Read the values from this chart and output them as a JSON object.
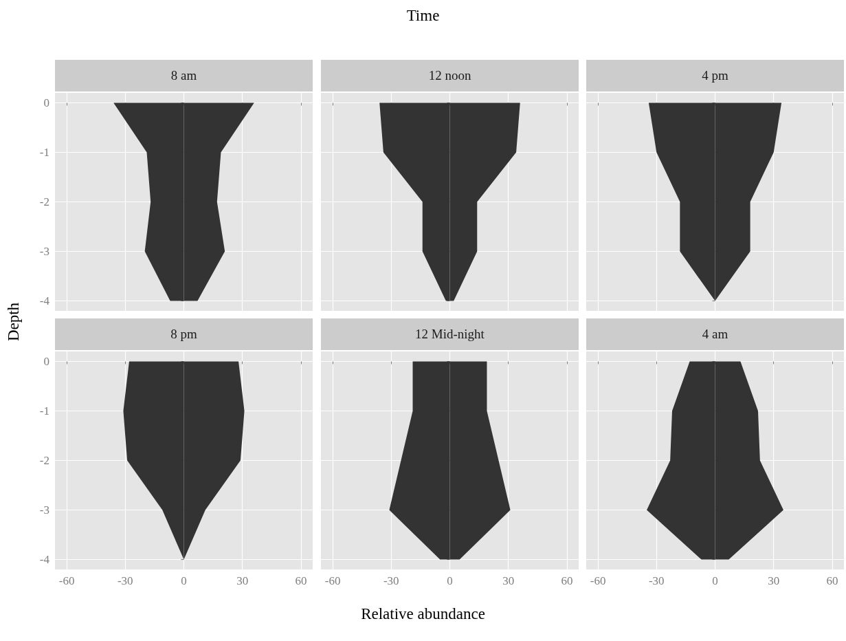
{
  "chart_data": [
    {
      "type": "area",
      "orientation": "horizontal",
      "title": "8 am",
      "ylabel": "Depth",
      "x": [
        0,
        -1,
        -2,
        -3,
        -4
      ],
      "series": [
        {
          "color": "#333333",
          "values": [
            -36,
            -19,
            -17,
            -20,
            -7
          ]
        },
        {
          "color": "#333333",
          "values": [
            36,
            19,
            17,
            21,
            7
          ]
        }
      ],
      "xlim": [
        -66,
        66
      ],
      "ylim": [
        -4.2,
        0.2
      ],
      "xticks": [
        -60,
        -30,
        0,
        30,
        60
      ],
      "yticks": [
        0,
        -1,
        -2,
        -3,
        -4
      ],
      "grid": true,
      "tick_labels": "y"
    },
    {
      "type": "area",
      "orientation": "horizontal",
      "title": "12 noon",
      "annotations": [
        "Time"
      ],
      "x": [
        0,
        -1,
        -2,
        -3,
        -4
      ],
      "series": [
        {
          "color": "#333333",
          "values": [
            -36,
            -34,
            -14,
            -14,
            -2
          ]
        },
        {
          "color": "#333333",
          "values": [
            36,
            34,
            14,
            14,
            2
          ]
        }
      ],
      "xlim": [
        -66,
        66
      ],
      "ylim": [
        -4.2,
        0.2
      ],
      "xticks": [
        -60,
        -30,
        0,
        30,
        60
      ],
      "yticks": [
        0,
        -1,
        -2,
        -3,
        -4
      ],
      "grid": true,
      "tick_labels": false
    },
    {
      "type": "area",
      "orientation": "horizontal",
      "title": "4 pm",
      "x": [
        0,
        -1,
        -2,
        -3,
        -4
      ],
      "series": [
        {
          "color": "#333333",
          "values": [
            -34,
            -30,
            -18,
            -18,
            0
          ]
        },
        {
          "color": "#333333",
          "values": [
            34,
            30,
            18,
            18,
            0
          ]
        }
      ],
      "xlim": [
        -66,
        66
      ],
      "ylim": [
        -4.2,
        0.2
      ],
      "xticks": [
        -60,
        -30,
        0,
        30,
        60
      ],
      "yticks": [
        0,
        -1,
        -2,
        -3,
        -4
      ],
      "grid": true,
      "tick_labels": false
    },
    {
      "type": "area",
      "orientation": "horizontal",
      "title": "8 pm",
      "x": [
        0,
        -1,
        -2,
        -3,
        -4
      ],
      "series": [
        {
          "color": "#333333",
          "values": [
            -28,
            -31,
            -29,
            -11,
            0
          ]
        },
        {
          "color": "#333333",
          "values": [
            28,
            31,
            29,
            11,
            0
          ]
        }
      ],
      "xlim": [
        -66,
        66
      ],
      "ylim": [
        -4.2,
        0.2
      ],
      "xticks": [
        -60,
        -30,
        0,
        30,
        60
      ],
      "yticks": [
        0,
        -1,
        -2,
        -3,
        -4
      ],
      "grid": true
    },
    {
      "type": "area",
      "orientation": "horizontal",
      "title": "12 Mid-night",
      "xlabel": "Relative abundance",
      "x": [
        0,
        -1,
        -2,
        -3,
        -4
      ],
      "series": [
        {
          "color": "#333333",
          "values": [
            -19,
            -19,
            -25,
            -31,
            -5
          ]
        },
        {
          "color": "#333333",
          "values": [
            19,
            19,
            25,
            31,
            5
          ]
        }
      ],
      "xlim": [
        -66,
        66
      ],
      "ylim": [
        -4.2,
        0.2
      ],
      "xticks": [
        -60,
        -30,
        0,
        30,
        60
      ],
      "yticks": [
        0,
        -1,
        -2,
        -3,
        -4
      ],
      "grid": true,
      "tick_labels": "x"
    },
    {
      "type": "area",
      "orientation": "horizontal",
      "title": "4 am",
      "x": [
        0,
        -1,
        -2,
        -3,
        -4
      ],
      "series": [
        {
          "color": "#333333",
          "values": [
            -13,
            -22,
            -23,
            -35,
            -7
          ]
        },
        {
          "color": "#333333",
          "values": [
            13,
            22,
            23,
            35,
            7
          ]
        }
      ],
      "xlim": [
        -66,
        66
      ],
      "ylim": [
        -4.2,
        0.2
      ],
      "xticks": [
        -60,
        -30,
        0,
        30,
        60
      ],
      "yticks": [
        0,
        -1,
        -2,
        -3,
        -4
      ],
      "grid": true,
      "tick_labels": "x"
    }
  ]
}
